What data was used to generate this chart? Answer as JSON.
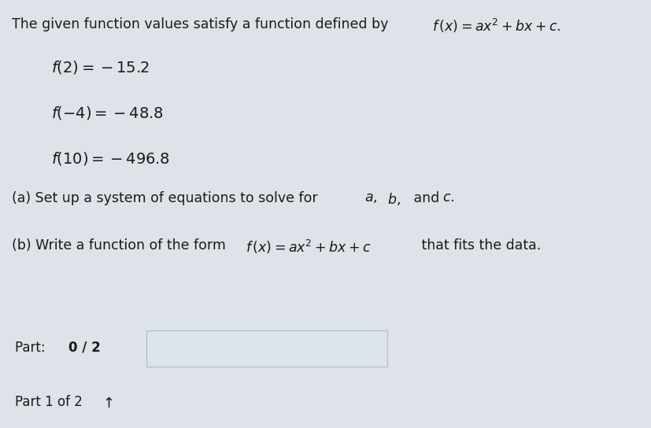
{
  "main_bg": "#dde3e8",
  "top_bg": "#e8eaec",
  "part_bar_bg": "#c8ced4",
  "part1_bar_bg": "#c0c6cc",
  "input_box_color": "#e8ecf0",
  "text_color": "#1a1a1a",
  "title_text": "The given function values satisfy a function defined by ",
  "title_math": "f(x)=ax^{2}+bx+c.",
  "f1_math": "f(2)=-15.2",
  "f2_math": "f(-4)=-48.8",
  "f3_math": "f(10)=-496.8",
  "part_a_text": "(a) Set up a system of equations to solve for ",
  "part_a_vars": "a,\\; b,\\;",
  "part_a_and": " and ",
  "part_a_c": "c.",
  "part_b_pre": "(b) Write a function of the form ",
  "part_b_math": "f(x)=ax^{2}+bx+c",
  "part_b_post": " that fits the data.",
  "part_label": "Part: ",
  "part_bold": "0 / 2",
  "part1_label": "Part 1 of 2"
}
